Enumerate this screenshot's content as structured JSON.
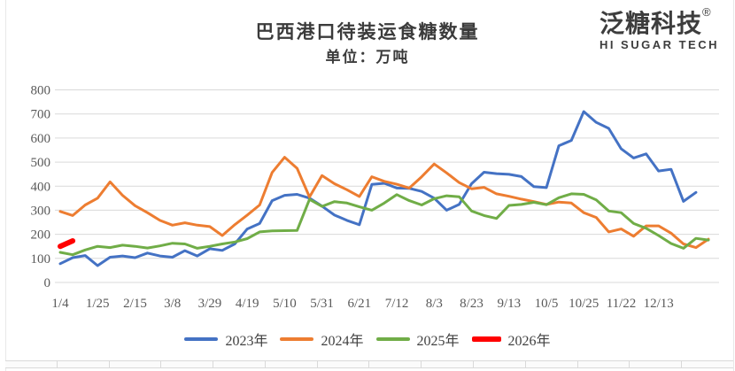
{
  "header": {
    "title": "巴西港口待装运食糖数量",
    "subtitle": "单位：万吨"
  },
  "logo": {
    "brand": "泛糖科技",
    "registered": "®",
    "tagline": "HI SUGAR TECH"
  },
  "colors": {
    "grid": "#d9d9d9",
    "axis_text": "#595959",
    "title_text": "#3b3b3b",
    "series_2023": "#4472C4",
    "series_2024": "#ED7D31",
    "series_2025": "#70AD47",
    "series_2026": "#FF0000"
  },
  "chart_data": {
    "type": "line",
    "title": "巴西港口待装运食糖数量",
    "ylabel": "",
    "xlabel": "",
    "unit_label": "单位：万吨",
    "ylim": [
      0,
      800
    ],
    "ytick_step": 100,
    "ytick_labels": [
      "0",
      "100",
      "200",
      "300",
      "400",
      "500",
      "600",
      "700",
      "800"
    ],
    "grid": true,
    "legend_position": "bottom",
    "x_tick_labels": [
      "1/4",
      "1/25",
      "2/15",
      "3/8",
      "3/29",
      "4/19",
      "5/10",
      "5/31",
      "6/21",
      "7/12",
      "8/3",
      "8/23",
      "9/13",
      "10/5",
      "10/25",
      "11/22",
      "12/13"
    ],
    "x_tick_every": 3,
    "series": [
      {
        "name": "2023年",
        "color": "#4472C4",
        "width": 3,
        "values": [
          78,
          103,
          112,
          70,
          105,
          110,
          103,
          122,
          110,
          105,
          132,
          110,
          140,
          133,
          160,
          222,
          245,
          340,
          362,
          366,
          350,
          317,
          280,
          258,
          240,
          407,
          412,
          392,
          391,
          378,
          350,
          300,
          324,
          410,
          458,
          452,
          449,
          440,
          398,
          394,
          568,
          590,
          710,
          665,
          640,
          555,
          517,
          534,
          463,
          470,
          337,
          374
        ]
      },
      {
        "name": "2024年",
        "color": "#ED7D31",
        "width": 3,
        "values": [
          295,
          278,
          322,
          350,
          418,
          362,
          319,
          290,
          258,
          238,
          248,
          238,
          232,
          195,
          240,
          280,
          322,
          457,
          520,
          474,
          355,
          444,
          410,
          385,
          357,
          439,
          420,
          408,
          392,
          439,
          492,
          455,
          415,
          389,
          395,
          368,
          358,
          346,
          336,
          324,
          334,
          330,
          290,
          270,
          210,
          222,
          192,
          235,
          235,
          205,
          160,
          145,
          180
        ]
      },
      {
        "name": "2025年",
        "color": "#70AD47",
        "width": 3,
        "values": [
          125,
          115,
          135,
          150,
          145,
          155,
          150,
          143,
          152,
          163,
          160,
          142,
          150,
          160,
          168,
          182,
          210,
          214,
          215,
          216,
          345,
          316,
          336,
          330,
          314,
          300,
          330,
          365,
          340,
          322,
          348,
          360,
          356,
          297,
          278,
          266,
          320,
          324,
          333,
          323,
          352,
          368,
          366,
          343,
          297,
          290,
          245,
          225,
          195,
          162,
          142,
          183,
          176
        ]
      },
      {
        "name": "2026年",
        "color": "#FF0000",
        "width": 6,
        "values": [
          150,
          173
        ]
      }
    ]
  }
}
